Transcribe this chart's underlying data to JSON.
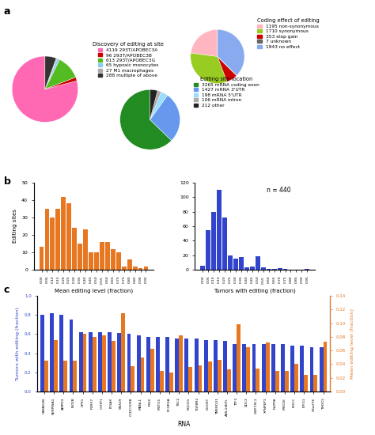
{
  "pie1_values": [
    4119,
    96,
    613,
    65,
    27,
    288
  ],
  "pie1_colors": [
    "#FF69B4",
    "#CC0000",
    "#55BB22",
    "#88CCEE",
    "#AAAAAA",
    "#333333"
  ],
  "pie1_labels": [
    "4119 293T/APOBEC3A",
    "96 293T/APOBEC3B",
    "613 293T/APOBEC3G",
    "65 hypoxic monocytes",
    "27 M1 macrophages",
    "288 multiple of above"
  ],
  "pie1_title": "Discovery of editing at site",
  "pie1_startangle": 90,
  "pie2_values": [
    1195,
    1710,
    353,
    7,
    1943
  ],
  "pie2_colors": [
    "#FFB6C1",
    "#99CC22",
    "#CC0000",
    "#666666",
    "#88AAEE"
  ],
  "pie2_labels": [
    "1195 non-synonymous",
    "1710 synonymous",
    "353 stop gain",
    "7 unknown",
    "1943 no effect"
  ],
  "pie2_title": "Coding effect of editing",
  "pie2_startangle": 90,
  "pie3_values": [
    3265,
    1427,
    198,
    106,
    212
  ],
  "pie3_colors": [
    "#228B22",
    "#6699EE",
    "#99DDFF",
    "#AAAAAA",
    "#222222"
  ],
  "pie3_labels": [
    "3265 mRNA coding exon",
    "1427 mRNA 3'UTR",
    "198 mRNA 5'UTR",
    "106 mRNA intron",
    "212 other"
  ],
  "pie3_title": "Editing site location",
  "pie3_startangle": 90,
  "hist1_values": [
    13,
    35,
    30,
    35,
    42,
    38,
    24,
    15,
    23,
    10,
    10,
    16,
    16,
    12,
    10,
    2,
    6,
    2,
    1,
    2
  ],
  "hist1_xlabel": "Mean editing level (fraction)",
  "hist1_ylabel": "Editing sites",
  "hist1_color": "#E87722",
  "hist1_xticks": [
    "0.00",
    "0.05",
    "0.10",
    "0.15",
    "0.20",
    "0.25",
    "0.30",
    "0.35",
    "0.40",
    "0.45",
    "0.50",
    "0.55",
    "0.60",
    "0.65",
    "0.70",
    "0.75",
    "0.80",
    "0.85",
    "0.90",
    "0.95"
  ],
  "hist2_values": [
    5,
    55,
    80,
    110,
    72,
    20,
    15,
    18,
    3,
    4,
    19,
    3,
    1,
    1,
    2,
    1,
    0,
    0,
    0,
    1
  ],
  "hist2_xlabel": "Tumors with editing (fraction)",
  "hist2_color": "#3344CC",
  "hist2_note": "n = 440",
  "hist2_xticks": [
    "0.00",
    "0.05",
    "0.10",
    "0.15",
    "0.20",
    "0.25",
    "0.30",
    "0.35",
    "0.40",
    "0.45",
    "0.50",
    "0.55",
    "0.60",
    "0.65",
    "0.70",
    "0.75",
    "0.80",
    "0.85",
    "0.90",
    "0.95"
  ],
  "bar_genes": [
    "GATAD2B",
    "SERPINA1",
    "AMPD3",
    "EVI2B",
    "HPS1",
    "P2RX7",
    "CYFIP1",
    "ITGAX",
    "SNX29",
    "CCDC109B",
    "MBNL1",
    "PIGX",
    "MSTO1",
    "FCGR3A",
    "TSC2",
    "RQCD1",
    "TGFBR2",
    "DDOST",
    "TMEM131",
    "AIRL14EPL",
    "TTF2",
    "SDC3",
    "CWF19L1",
    "XPNPEP1",
    "NUP98",
    "MYO1E",
    "RGCC",
    "ITFG1",
    "C8orf76",
    "THOC5"
  ],
  "bar_blue": [
    0.8,
    0.82,
    0.8,
    0.75,
    0.62,
    0.62,
    0.62,
    0.62,
    0.61,
    0.6,
    0.59,
    0.57,
    0.57,
    0.57,
    0.55,
    0.55,
    0.55,
    0.54,
    0.54,
    0.53,
    0.5,
    0.5,
    0.5,
    0.5,
    0.5,
    0.5,
    0.48,
    0.48,
    0.46,
    0.46
  ],
  "bar_orange": [
    0.045,
    0.075,
    0.045,
    0.045,
    0.085,
    0.08,
    0.082,
    0.074,
    0.115,
    0.037,
    0.05,
    0.062,
    0.03,
    0.028,
    0.082,
    0.036,
    0.038,
    0.044,
    0.046,
    0.032,
    0.098,
    0.065,
    0.033,
    0.072,
    0.03,
    0.03,
    0.04,
    0.024,
    0.024,
    0.073
  ],
  "bar_blue_color": "#3344CC",
  "bar_orange_color": "#E87722",
  "bar_ylabel_left": "Tumors with editing (fraction)",
  "bar_ylabel_right": "Mean editing level (fraction)",
  "bar_xlabel": "RNA",
  "panel_labels": [
    "a",
    "b",
    "c"
  ]
}
